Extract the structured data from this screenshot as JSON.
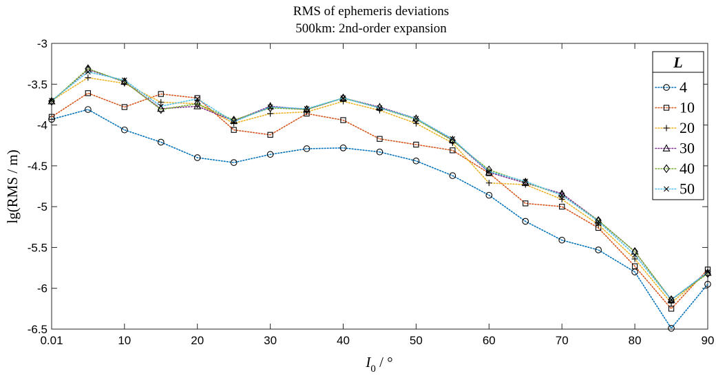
{
  "chart_data": {
    "type": "line",
    "title": "RMS of ephemeris deviations",
    "subtitle": "500km: 2nd-order expansion",
    "xlabel_main": "I",
    "xlabel_sub": "0",
    "xlabel_unit": " / °",
    "ylabel": "lg(RMS / m)",
    "xlim": [
      0.01,
      90
    ],
    "ylim": [
      -6.5,
      -3
    ],
    "xticks": [
      "0.01",
      "10",
      "20",
      "30",
      "40",
      "50",
      "60",
      "70",
      "80",
      "90"
    ],
    "yticks": [
      "-3",
      "-3.5",
      "-4",
      "-4.5",
      "-5",
      "-5.5",
      "-6",
      "-6.5"
    ],
    "grid": false,
    "legend_title": "L",
    "legend_position": "top-right",
    "x": [
      0.01,
      5,
      10,
      15,
      20,
      25,
      30,
      35,
      40,
      45,
      50,
      55,
      60,
      65,
      70,
      75,
      80,
      85,
      90
    ],
    "series": [
      {
        "name": "4",
        "color": "#0072BD",
        "marker": "circle",
        "values": [
          -3.93,
          -3.81,
          -4.06,
          -4.21,
          -4.4,
          -4.46,
          -4.36,
          -4.29,
          -4.28,
          -4.33,
          -4.44,
          -4.62,
          -4.86,
          -5.18,
          -5.41,
          -5.53,
          -5.8,
          -6.49,
          -5.95
        ]
      },
      {
        "name": "10",
        "color": "#D95319",
        "marker": "square",
        "values": [
          -3.9,
          -3.61,
          -3.78,
          -3.62,
          -3.67,
          -4.06,
          -4.12,
          -3.86,
          -3.94,
          -4.17,
          -4.24,
          -4.31,
          -4.59,
          -4.96,
          -5.0,
          -5.26,
          -5.73,
          -6.25,
          -5.77
        ]
      },
      {
        "name": "20",
        "color": "#EDB120",
        "marker": "plus",
        "values": [
          -3.7,
          -3.42,
          -3.49,
          -3.72,
          -3.74,
          -3.98,
          -3.86,
          -3.84,
          -3.71,
          -3.82,
          -3.98,
          -4.22,
          -4.71,
          -4.73,
          -4.91,
          -5.22,
          -5.64,
          -6.18,
          -5.8
        ]
      },
      {
        "name": "30",
        "color": "#7E2F8E",
        "marker": "triangle",
        "values": [
          -3.71,
          -3.32,
          -3.47,
          -3.8,
          -3.77,
          -3.95,
          -3.77,
          -3.81,
          -3.67,
          -3.78,
          -3.92,
          -4.18,
          -4.58,
          -4.71,
          -4.84,
          -5.17,
          -5.55,
          -6.14,
          -5.81
        ]
      },
      {
        "name": "40",
        "color": "#77AC30",
        "marker": "diamond",
        "values": [
          -3.71,
          -3.31,
          -3.47,
          -3.81,
          -3.74,
          -3.94,
          -3.79,
          -3.81,
          -3.67,
          -3.79,
          -3.93,
          -4.19,
          -4.55,
          -4.7,
          -4.86,
          -5.17,
          -5.55,
          -6.14,
          -5.82
        ]
      },
      {
        "name": "50",
        "color": "#4DBEEE",
        "marker": "x",
        "values": [
          -3.7,
          -3.35,
          -3.45,
          -3.77,
          -3.68,
          -3.96,
          -3.78,
          -3.8,
          -3.67,
          -3.79,
          -3.92,
          -4.17,
          -4.57,
          -4.69,
          -4.86,
          -5.18,
          -5.59,
          -6.14,
          -5.8
        ]
      }
    ]
  }
}
